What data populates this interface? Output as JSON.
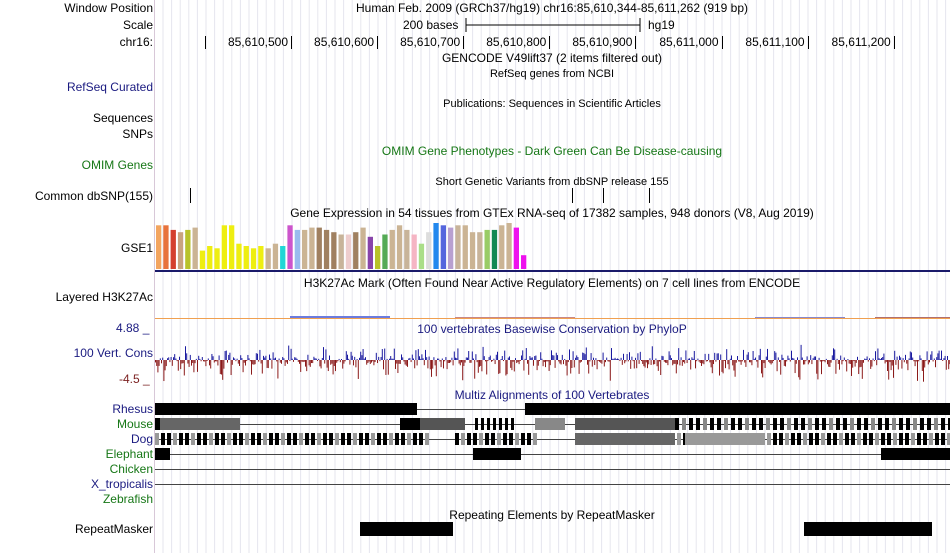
{
  "header": {
    "window_position_label": "Window Position",
    "window_position_value": "Human Feb. 2009 (GRCh37/hg19)   chr16:85,610,344-85,611,262 (919 bp)",
    "scale_label": "Scale",
    "scale_bases": "200 bases",
    "scale_assembly": "hg19",
    "chrom_label": "chr16:",
    "ruler_ticks": [
      "85,610,500",
      "85,610,600",
      "85,610,700",
      "85,610,800",
      "85,610,900",
      "85,611,000",
      "85,611,100",
      "85,611,200"
    ]
  },
  "tracks": {
    "gencode": {
      "title": "GENCODE V49lift37 (2 items filtered out)"
    },
    "refseq": {
      "label": "RefSeq Curated",
      "title": "RefSeq genes from NCBI"
    },
    "publications": {
      "label": "Sequences",
      "title": "Publications: Sequences in Scientific Articles"
    },
    "snps": {
      "label": "SNPs"
    },
    "omim": {
      "label": "OMIM Genes",
      "title": "OMIM Gene Phenotypes - Dark Green Can Be Disease-causing"
    },
    "dbsnp": {
      "label": "Common dbSNP(155)",
      "title": "Short Genetic Variants from dbSNP release 155"
    },
    "gtex": {
      "label": "GSE1",
      "title": "Gene Expression in 54 tissues from GTEx RNA-seq of 17382 samples, 948 donors (V8, Aug 2019)"
    },
    "h3k27ac": {
      "label": "Layered H3K27Ac",
      "title": "H3K27Ac Mark (Often Found Near Active Regulatory Elements) on 7 cell lines from ENCODE"
    },
    "phylop": {
      "label": "100 Vert. Cons",
      "title": "100 vertebrates Basewise Conservation by PhyloP",
      "max": "4.88 _",
      "min": "-4.5 _"
    },
    "multiz": {
      "title": "Multiz Alignments of 100 Vertebrates",
      "species": [
        "Rhesus",
        "Mouse",
        "Dog",
        "Elephant",
        "Chicken",
        "X_tropicalis",
        "Zebrafish"
      ]
    },
    "repeatmasker": {
      "label": "RepeatMasker",
      "title": "Repeating Elements by RepeatMasker"
    }
  },
  "colors": {
    "navy": "#1a1a80",
    "green": "#167716",
    "phylop_pos": "#1a1aa0",
    "phylop_neg": "#8b1a1a",
    "gtex_divider": "#1a1a6a"
  },
  "gtex_levels": [
    0.95,
    0.95,
    0.85,
    0.8,
    0.85,
    0.9,
    0.4,
    0.5,
    0.45,
    0.95,
    0.95,
    0.55,
    0.5,
    0.45,
    0.5,
    0.45,
    0.55,
    0.5,
    0.95,
    0.85,
    0.85,
    0.9,
    0.9,
    0.85,
    0.8,
    0.75,
    0.75,
    0.8,
    0.9,
    0.7,
    0.5,
    0.75,
    0.85,
    0.95,
    0.85,
    0.75,
    0.55,
    0.8,
    1.0,
    0.95,
    0.9,
    0.95,
    0.95,
    0.8,
    0.8,
    0.85,
    0.85,
    0.95,
    1.0,
    0.9,
    0.3
  ],
  "gtex_colors": [
    "#f3a55f",
    "#e8733c",
    "#d43f2e",
    "#c9a37f",
    "#b8c22a",
    "#cbb494",
    "#eeee11",
    "#eeee11",
    "#eeee11",
    "#eeee11",
    "#eeee11",
    "#eeee11",
    "#eeee11",
    "#eeee11",
    "#eeee11",
    "#cbb494",
    "#cbb494",
    "#21d6d6",
    "#cc55cc",
    "#99bbee",
    "#cbb494",
    "#cbb494",
    "#a08060",
    "#a08060",
    "#a08060",
    "#c8b49a",
    "#eecdcd",
    "#a08060",
    "#cbb494",
    "#8844aa",
    "#b8c22a",
    "#55aa55",
    "#cbb494",
    "#cbb494",
    "#c8b49a",
    "#f5b5c4",
    "#aade88",
    "#dddddd",
    "#2288ee",
    "#5566dd",
    "#b8a0d0",
    "#c8b49a",
    "#cbb494",
    "#cbb494",
    "#c8b49a",
    "#99cc66",
    "#118855",
    "#cbb494",
    "#cbb494",
    "#ee11ee",
    "#ee11ee"
  ]
}
